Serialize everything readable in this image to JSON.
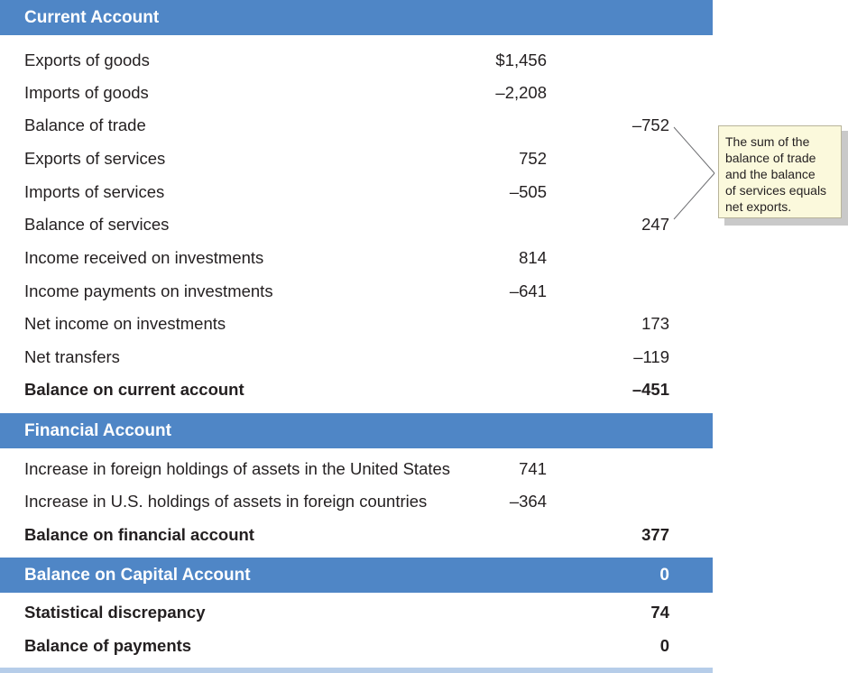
{
  "current_account": {
    "header": "Current Account",
    "rows": [
      {
        "label": "Exports of goods",
        "v1": "$1,456",
        "v2": ""
      },
      {
        "label": "Imports of goods",
        "v1": "–2,208",
        "v2": ""
      },
      {
        "label": "Balance of trade",
        "v1": "",
        "v2": "–752"
      },
      {
        "label": "Exports of services",
        "v1": "752",
        "v2": ""
      },
      {
        "label": "Imports of services",
        "v1": "–505",
        "v2": ""
      },
      {
        "label": "Balance of services",
        "v1": "",
        "v2": "247"
      },
      {
        "label": "Income received on investments",
        "v1": "814",
        "v2": ""
      },
      {
        "label": "Income payments on investments",
        "v1": "–641",
        "v2": ""
      },
      {
        "label": "Net income on investments",
        "v1": "",
        "v2": "173"
      },
      {
        "label": "Net transfers",
        "v1": "",
        "v2": "–119"
      },
      {
        "label": "Balance on current account",
        "v1": "",
        "v2": "–451"
      }
    ]
  },
  "financial_account": {
    "header": "Financial Account",
    "rows": [
      {
        "label": "Increase in foreign holdings of assets in the United States",
        "v1": "741",
        "v2": ""
      },
      {
        "label": "Increase in U.S. holdings of assets in foreign countries",
        "v1": "–364",
        "v2": ""
      },
      {
        "label": "Balance on financial account",
        "v1": "",
        "v2": "377"
      }
    ]
  },
  "capital_account": {
    "header": "Balance on Capital Account",
    "value": "0"
  },
  "summary": {
    "rows": [
      {
        "label": "Statistical discrepancy",
        "v2": "74"
      },
      {
        "label": "Balance of payments",
        "v2": "0"
      }
    ]
  },
  "callout": {
    "lines": [
      "The sum of the",
      "balance of trade",
      "and the balance",
      "of services equals",
      "net exports."
    ]
  },
  "colors": {
    "header_bg": "#4f86c6",
    "callout_bg": "#fbf9dc",
    "bottom_bar": "#b6cde9"
  }
}
